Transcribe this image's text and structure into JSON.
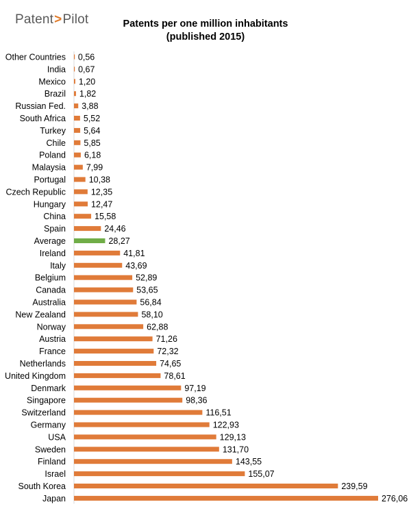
{
  "logo": {
    "part1": "Patent",
    "separator": ">",
    "part2": "Pilot"
  },
  "chart_data": {
    "type": "bar",
    "orientation": "horizontal",
    "title": "Patents per one million inhabitants",
    "subtitle": "(published 2015)",
    "xlabel": "",
    "ylabel": "",
    "xlim": [
      0,
      276.06
    ],
    "grid": false,
    "legend": "none",
    "bar_color": "#E07B39",
    "highlight_color": "#70AD47",
    "highlight_category": "Average",
    "categories": [
      "Other Countries",
      "India",
      "Mexico",
      "Brazil",
      "Russian Fed.",
      "South Africa",
      "Turkey",
      "Chile",
      "Poland",
      "Malaysia",
      "Portugal",
      "Czech Republic",
      "Hungary",
      "China",
      "Spain",
      "Average",
      "Ireland",
      "Italy",
      "Belgium",
      "Canada",
      "Australia",
      "New Zealand",
      "Norway",
      "Austria",
      "France",
      "Netherlands",
      "United Kingdom",
      "Denmark",
      "Singapore",
      "Switzerland",
      "Germany",
      "USA",
      "Sweden",
      "Finland",
      "Israel",
      "South Korea",
      "Japan"
    ],
    "values": [
      0.56,
      0.67,
      1.2,
      1.82,
      3.88,
      5.52,
      5.64,
      5.85,
      6.18,
      7.99,
      10.38,
      12.35,
      12.47,
      15.58,
      24.46,
      28.27,
      41.81,
      43.69,
      52.89,
      53.65,
      56.84,
      58.1,
      62.88,
      71.26,
      72.32,
      74.65,
      78.61,
      97.19,
      98.36,
      116.51,
      122.93,
      129.13,
      131.7,
      143.55,
      155.07,
      239.59,
      276.06
    ],
    "value_labels": [
      "0,56",
      "0,67",
      "1,20",
      "1,82",
      "3,88",
      "5,52",
      "5,64",
      "5,85",
      "6,18",
      "7,99",
      "10,38",
      "12,35",
      "12,47",
      "15,58",
      "24,46",
      "28,27",
      "41,81",
      "43,69",
      "52,89",
      "53,65",
      "56,84",
      "58,10",
      "62,88",
      "71,26",
      "72,32",
      "74,65",
      "78,61",
      "97,19",
      "98,36",
      "116,51",
      "122,93",
      "129,13",
      "131,70",
      "143,55",
      "155,07",
      "239,59",
      "276,06"
    ]
  }
}
